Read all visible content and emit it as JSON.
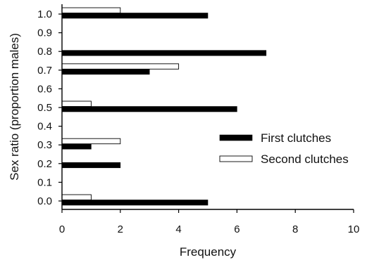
{
  "chart_data": {
    "type": "bar",
    "orientation": "horizontal",
    "categories": [
      "0.0",
      "0.1",
      "0.2",
      "0.3",
      "0.4",
      "0.5",
      "0.6",
      "0.7",
      "0.8",
      "0.9",
      "1.0"
    ],
    "series": [
      {
        "name": "First clutches",
        "values": [
          5,
          0,
          2,
          1,
          0,
          6,
          0,
          3,
          7,
          0,
          5
        ],
        "color": "#000000"
      },
      {
        "name": "Second clutches",
        "values": [
          1,
          0,
          0,
          2,
          0,
          1,
          0,
          4,
          0,
          0,
          2
        ],
        "color": "#ffffff"
      }
    ],
    "xlabel": "Frequency",
    "ylabel": "Sex ratio (proportion males)",
    "xlim": [
      0,
      10
    ],
    "xticks": [
      "0",
      "2",
      "4",
      "6",
      "8",
      "10"
    ],
    "grid": false,
    "legend_position": "right"
  }
}
